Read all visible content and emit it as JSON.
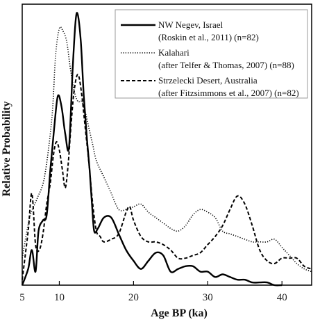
{
  "chart_data": {
    "type": "line",
    "xlabel": "Age BP (ka)",
    "ylabel": "Relative Probability",
    "xlim": [
      5,
      44
    ],
    "ylim": [
      0,
      1.04
    ],
    "x_ticks": [
      5,
      10,
      20,
      30,
      40
    ],
    "y_ticks_labeled": false,
    "grid": false,
    "legend_position": "top-right",
    "series": [
      {
        "name": "NW Negev, Israel",
        "subtitle": "(Roskin et al., 2011) (n=82)",
        "style": "solid",
        "x": [
          5.0,
          5.8,
          6.3,
          6.8,
          7.2,
          7.8,
          8.3,
          8.8,
          9.3,
          9.8,
          10.3,
          10.8,
          11.3,
          11.8,
          12.2,
          12.5,
          12.9,
          13.3,
          13.7,
          14.1,
          14.4,
          14.7,
          15.2,
          16.0,
          17.0,
          18.0,
          19.0,
          20.0,
          21.0,
          22.0,
          23.0,
          24.0,
          25.0,
          26.0,
          27.0,
          28.0,
          29.0,
          30.0,
          31.0,
          32.0,
          33.0,
          34.0,
          35.0,
          36.0,
          37.0,
          38.0,
          39.0,
          40.0
        ],
        "values": [
          0.0,
          0.06,
          0.13,
          0.05,
          0.2,
          0.24,
          0.26,
          0.43,
          0.58,
          0.7,
          0.66,
          0.56,
          0.51,
          0.8,
          0.98,
          1.0,
          0.9,
          0.7,
          0.55,
          0.42,
          0.3,
          0.2,
          0.21,
          0.25,
          0.25,
          0.19,
          0.13,
          0.09,
          0.06,
          0.09,
          0.12,
          0.11,
          0.05,
          0.06,
          0.07,
          0.07,
          0.05,
          0.05,
          0.03,
          0.04,
          0.03,
          0.02,
          0.02,
          0.01,
          0.01,
          0.01,
          0.0,
          0.0
        ]
      },
      {
        "name": "Kalahari",
        "subtitle": "(after Telfer & Thomas, 2007) (n=88)",
        "style": "dotted",
        "x": [
          5.0,
          6.0,
          7.0,
          8.0,
          9.0,
          9.5,
          10.0,
          10.5,
          11.0,
          11.5,
          12.0,
          12.5,
          13.0,
          13.5,
          14.0,
          14.5,
          15.0,
          16.0,
          17.0,
          18.0,
          19.0,
          20.0,
          21.0,
          22.0,
          23.0,
          24.0,
          25.0,
          26.0,
          27.0,
          28.0,
          29.0,
          30.0,
          31.0,
          32.0,
          33.0,
          34.0,
          35.0,
          36.0,
          37.0,
          38.0,
          39.0,
          40.0,
          41.0,
          42.0,
          43.0,
          44.0
        ],
        "values": [
          0.1,
          0.25,
          0.32,
          0.4,
          0.62,
          0.85,
          0.95,
          0.94,
          0.9,
          0.8,
          0.72,
          0.68,
          0.68,
          0.64,
          0.58,
          0.52,
          0.46,
          0.4,
          0.34,
          0.28,
          0.28,
          0.29,
          0.3,
          0.27,
          0.25,
          0.23,
          0.21,
          0.2,
          0.22,
          0.26,
          0.28,
          0.27,
          0.25,
          0.2,
          0.19,
          0.18,
          0.17,
          0.16,
          0.16,
          0.16,
          0.17,
          0.14,
          0.11,
          0.08,
          0.06,
          0.05
        ]
      },
      {
        "name": "Strzelecki Desert, Australia",
        "subtitle": "(after Fitzsimmons et al., 2007) (n=82)",
        "style": "dashed",
        "x": [
          5.0,
          5.8,
          6.3,
          6.8,
          7.3,
          7.8,
          8.3,
          8.8,
          9.2,
          9.6,
          10.0,
          10.4,
          10.8,
          11.2,
          11.6,
          12.0,
          12.5,
          13.0,
          13.5,
          14.0,
          14.5,
          15.0,
          15.5,
          16.0,
          17.0,
          18.0,
          19.0,
          19.5,
          20.0,
          21.0,
          22.0,
          23.0,
          24.0,
          25.0,
          26.0,
          27.0,
          28.0,
          29.0,
          30.0,
          31.0,
          32.0,
          33.0,
          34.0,
          35.0,
          36.0,
          37.0,
          38.0,
          39.0,
          40.0,
          41.0,
          42.0,
          43.0,
          44.0
        ],
        "values": [
          0.02,
          0.2,
          0.34,
          0.15,
          0.13,
          0.19,
          0.3,
          0.38,
          0.48,
          0.53,
          0.5,
          0.43,
          0.36,
          0.45,
          0.6,
          0.72,
          0.78,
          0.71,
          0.58,
          0.45,
          0.3,
          0.2,
          0.18,
          0.16,
          0.17,
          0.19,
          0.27,
          0.29,
          0.24,
          0.18,
          0.16,
          0.16,
          0.15,
          0.13,
          0.1,
          0.1,
          0.11,
          0.12,
          0.15,
          0.18,
          0.22,
          0.28,
          0.33,
          0.3,
          0.22,
          0.13,
          0.09,
          0.08,
          0.1,
          0.1,
          0.1,
          0.07,
          0.06
        ]
      }
    ]
  }
}
